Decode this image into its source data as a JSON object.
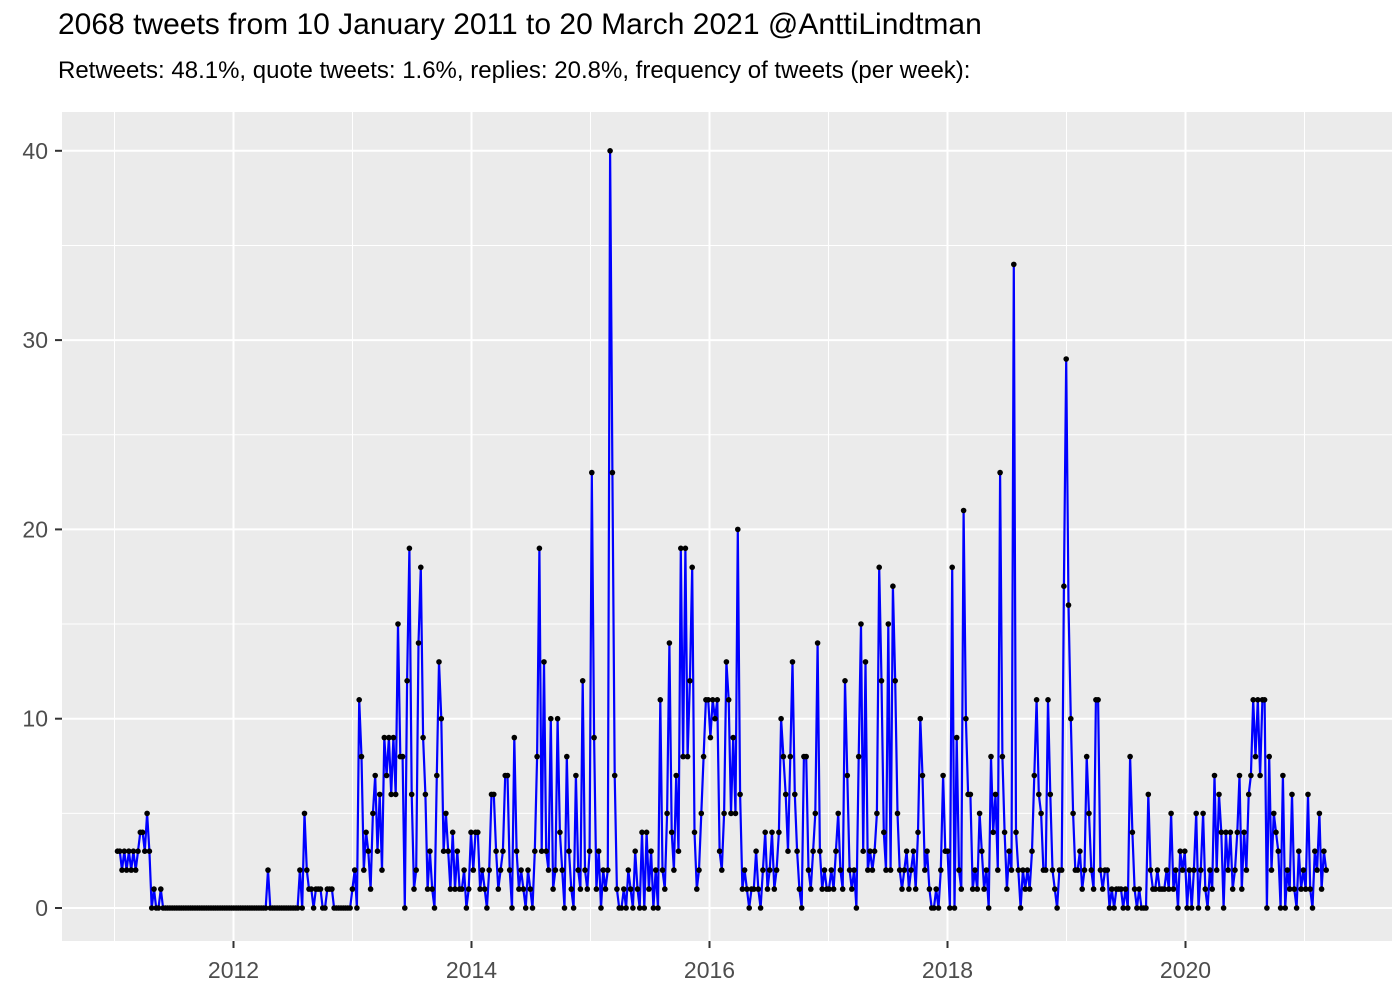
{
  "header": {
    "title": "2068 tweets from 10 January 2011 to 20 March 2021 @AnttiLindtman",
    "subtitle": "Retweets: 48.1%, quote tweets: 1.6%, replies: 20.8%, frequency of tweets (per week):"
  },
  "chart_data": {
    "type": "line",
    "title": "2068 tweets from 10 January 2011 to 20 March 2021 @AnttiLindtman",
    "subtitle": "Retweets: 48.1%, quote tweets: 1.6%, replies: 20.8%, frequency of tweets (per week):",
    "xlabel": "",
    "ylabel": "",
    "x_axis": {
      "major_ticks": [
        2012,
        2014,
        2016,
        2018,
        2020
      ],
      "major_tick_labels": [
        "2012",
        "2014",
        "2016",
        "2018",
        "2020"
      ],
      "minor_gridlines": [
        2011,
        2013,
        2015,
        2017,
        2019,
        2021
      ],
      "range_years": [
        2010.56,
        2021.74
      ]
    },
    "y_axis": {
      "major_ticks": [
        0,
        10,
        20,
        30,
        40
      ],
      "major_tick_labels": [
        "0",
        "10",
        "20",
        "30",
        "40"
      ],
      "minor_gridlines": [
        5,
        15,
        25,
        35
      ],
      "range": [
        -1.75,
        42.05
      ]
    },
    "grid": "on",
    "legend": "none",
    "series": {
      "name": "tweets-per-week",
      "interval": "weekly",
      "start_date": "2011-01-10",
      "end_date": "2021-03-20",
      "start_year_fraction": 2011.025,
      "values": [
        3,
        3,
        2,
        3,
        2,
        3,
        2,
        3,
        2,
        3,
        4,
        4,
        3,
        5,
        3,
        0,
        1,
        0,
        0,
        1,
        0,
        0,
        0,
        0,
        0,
        0,
        0,
        0,
        0,
        0,
        0,
        0,
        0,
        0,
        0,
        0,
        0,
        0,
        0,
        0,
        0,
        0,
        0,
        0,
        0,
        0,
        0,
        0,
        0,
        0,
        0,
        0,
        0,
        0,
        0,
        0,
        0,
        0,
        0,
        0,
        0,
        0,
        0,
        0,
        0,
        0,
        2,
        0,
        0,
        0,
        0,
        0,
        0,
        0,
        0,
        0,
        0,
        0,
        0,
        0,
        2,
        0,
        5,
        2,
        1,
        1,
        0,
        1,
        1,
        1,
        0,
        0,
        1,
        1,
        1,
        0,
        0,
        0,
        0,
        0,
        0,
        0,
        0,
        1,
        2,
        0,
        11,
        8,
        2,
        4,
        3,
        1,
        5,
        7,
        3,
        6,
        2,
        9,
        7,
        9,
        6,
        9,
        6,
        15,
        8,
        8,
        0,
        12,
        19,
        6,
        1,
        2,
        14,
        18,
        9,
        6,
        1,
        3,
        1,
        0,
        7,
        13,
        10,
        3,
        5,
        3,
        1,
        4,
        1,
        3,
        1,
        1,
        2,
        0,
        1,
        4,
        2,
        4,
        4,
        1,
        2,
        1,
        0,
        2,
        6,
        6,
        3,
        1,
        2,
        3,
        7,
        7,
        2,
        0,
        9,
        3,
        1,
        2,
        1,
        0,
        2,
        1,
        0,
        3,
        8,
        19,
        3,
        13,
        3,
        2,
        10,
        1,
        2,
        10,
        4,
        2,
        0,
        8,
        3,
        1,
        0,
        7,
        2,
        1,
        12,
        2,
        1,
        3,
        23,
        9,
        1,
        3,
        0,
        2,
        1,
        2,
        40,
        23,
        7,
        1,
        0,
        0,
        1,
        0,
        2,
        1,
        0,
        3,
        1,
        0,
        4,
        0,
        4,
        1,
        3,
        0,
        2,
        0,
        11,
        2,
        1,
        5,
        14,
        4,
        2,
        7,
        3,
        19,
        8,
        19,
        8,
        12,
        18,
        4,
        1,
        2,
        5,
        8,
        11,
        11,
        9,
        11,
        10,
        11,
        3,
        2,
        5,
        13,
        11,
        5,
        9,
        5,
        20,
        6,
        1,
        2,
        1,
        0,
        1,
        1,
        3,
        1,
        0,
        2,
        4,
        1,
        2,
        4,
        1,
        2,
        4,
        10,
        8,
        6,
        3,
        8,
        13,
        6,
        3,
        1,
        0,
        8,
        8,
        2,
        1,
        3,
        5,
        14,
        3,
        1,
        2,
        1,
        1,
        2,
        1,
        3,
        5,
        2,
        1,
        12,
        7,
        2,
        1,
        2,
        0,
        8,
        15,
        3,
        13,
        2,
        3,
        2,
        3,
        5,
        18,
        12,
        4,
        2,
        15,
        2,
        17,
        12,
        5,
        2,
        1,
        2,
        3,
        1,
        2,
        3,
        1,
        4,
        10,
        7,
        2,
        3,
        1,
        0,
        0,
        1,
        0,
        2,
        7,
        3,
        3,
        0,
        18,
        0,
        9,
        2,
        1,
        21,
        10,
        6,
        6,
        1,
        2,
        1,
        5,
        3,
        1,
        2,
        0,
        8,
        4,
        6,
        2,
        23,
        8,
        4,
        1,
        3,
        2,
        34,
        4,
        2,
        0,
        2,
        1,
        2,
        1,
        3,
        7,
        11,
        6,
        5,
        2,
        2,
        11,
        6,
        2,
        1,
        0,
        2,
        2,
        17,
        29,
        16,
        10,
        5,
        2,
        2,
        3,
        1,
        2,
        8,
        5,
        2,
        1,
        11,
        11,
        2,
        1,
        2,
        2,
        0,
        1,
        0,
        1,
        1,
        1,
        0,
        1,
        0,
        8,
        4,
        1,
        0,
        1,
        0,
        0,
        0,
        6,
        2,
        1,
        1,
        2,
        1,
        1,
        1,
        2,
        1,
        5,
        1,
        2,
        0,
        3,
        2,
        3,
        0,
        2,
        0,
        2,
        5,
        0,
        2,
        5,
        1,
        0,
        2,
        1,
        7,
        2,
        6,
        4,
        0,
        4,
        2,
        4,
        1,
        2,
        4,
        7,
        1,
        4,
        2,
        6,
        7,
        11,
        8,
        11,
        7,
        11,
        11,
        0,
        8,
        2,
        5,
        4,
        3,
        0,
        7,
        0,
        2,
        1,
        6,
        1,
        0,
        3,
        1,
        2,
        1,
        6,
        1,
        0,
        3,
        2,
        5,
        1,
        3,
        2
      ]
    },
    "colors": {
      "line": "#0000FF",
      "point": "#000000",
      "panel_bg": "#EBEBEB",
      "gridline": "#FFFFFF",
      "axis_text": "#4D4D4D",
      "tick_mark": "#333333",
      "title_text": "#000000",
      "page_bg": "#FFFFFF"
    }
  }
}
